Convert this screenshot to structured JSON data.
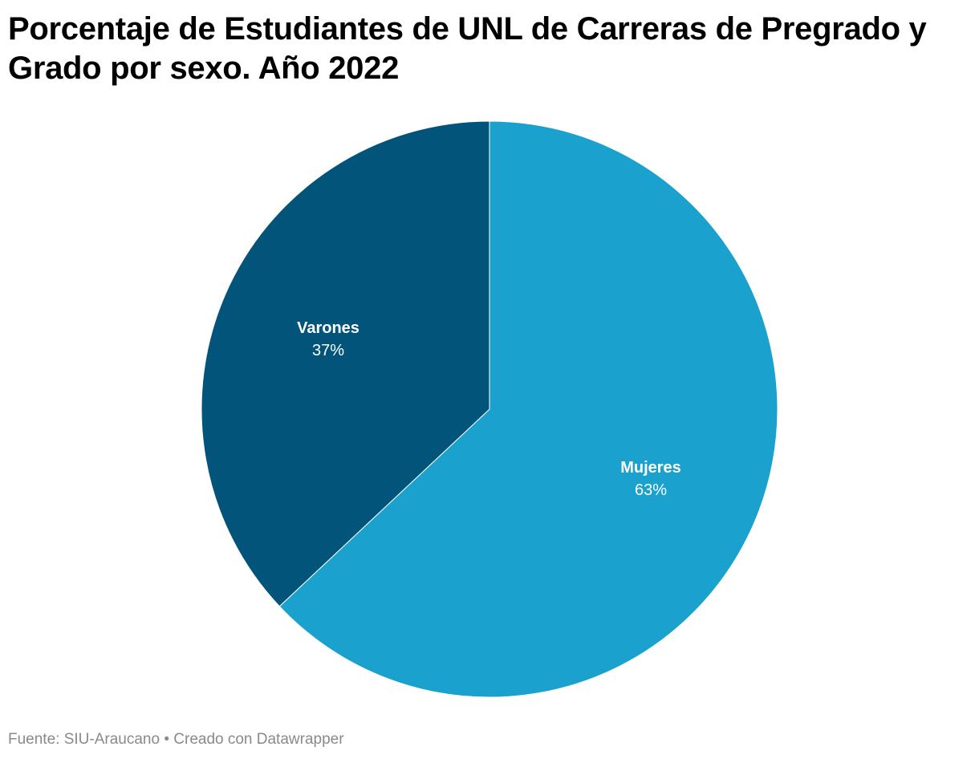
{
  "title": "Porcentaje de Estudiantes de UNL de Carreras de Pregrado y Grado por sexo. Año 2022",
  "footer": {
    "source": "Fuente: SIU-Araucano",
    "separator": "•",
    "credit": "Creado con Datawrapper"
  },
  "chart_data": {
    "type": "pie",
    "title": "Porcentaje de Estudiantes de UNL de Carreras de Pregrado y Grado por sexo. Año 2022",
    "slices": [
      {
        "label": "Mujeres",
        "value": 63,
        "display": "63%",
        "color": "#1aa1cd"
      },
      {
        "label": "Varones",
        "value": 37,
        "display": "37%",
        "color": "#03547b"
      }
    ],
    "start_angle": "12 o'clock",
    "direction": "clockwise",
    "slice_border_color": "#ffffff"
  }
}
